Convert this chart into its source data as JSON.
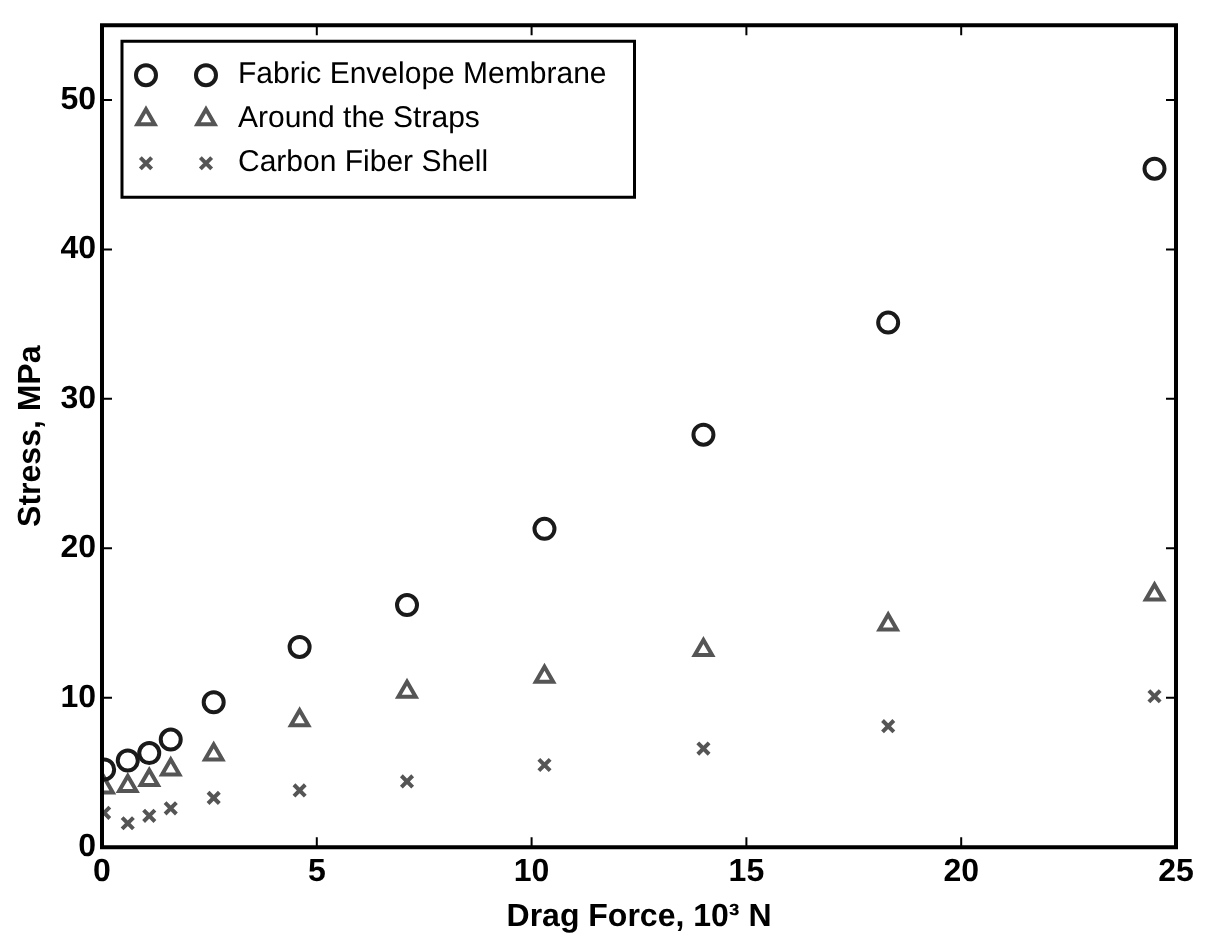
{
  "chart_data": {
    "type": "scatter",
    "xlabel": "Drag Force, 10³ N",
    "ylabel": "Stress, MPa",
    "xlim": [
      0,
      25
    ],
    "xticks": [
      0,
      5,
      10,
      15,
      20,
      25
    ],
    "ylim": [
      0,
      55
    ],
    "yticks": [
      0,
      10,
      20,
      30,
      40,
      50
    ],
    "grid": false,
    "legend": "top left",
    "series": [
      {
        "name": "Fabric Envelope Membrane",
        "color": "#1a1a1a",
        "marker": "circle",
        "x": [
          0.05,
          0.6,
          1.1,
          1.6,
          2.6,
          4.6,
          7.1,
          10.3,
          14,
          18.3,
          24.5
        ],
        "values": [
          5.2,
          5.8,
          6.3,
          7.2,
          9.7,
          13.4,
          16.2,
          21.3,
          27.6,
          35.1,
          45.4
        ]
      },
      {
        "name": "Around the Straps",
        "color": "#555555",
        "marker": "triangle",
        "x": [
          0.05,
          0.6,
          1.1,
          1.6,
          2.6,
          4.6,
          7.1,
          10.3,
          14,
          18.3,
          24.5
        ],
        "values": [
          4.0,
          4.1,
          4.5,
          5.2,
          6.2,
          8.5,
          10.4,
          11.4,
          13.2,
          14.9,
          16.9
        ]
      },
      {
        "name": "Carbon Fiber Shell",
        "color": "#555555",
        "marker": "cross",
        "x": [
          0.05,
          0.6,
          1.1,
          1.6,
          2.6,
          4.6,
          7.1,
          10.3,
          14,
          18.3,
          24.5
        ],
        "values": [
          2.3,
          1.6,
          2.1,
          2.6,
          3.3,
          3.8,
          4.4,
          5.5,
          6.6,
          8.1,
          10.1
        ]
      }
    ]
  }
}
